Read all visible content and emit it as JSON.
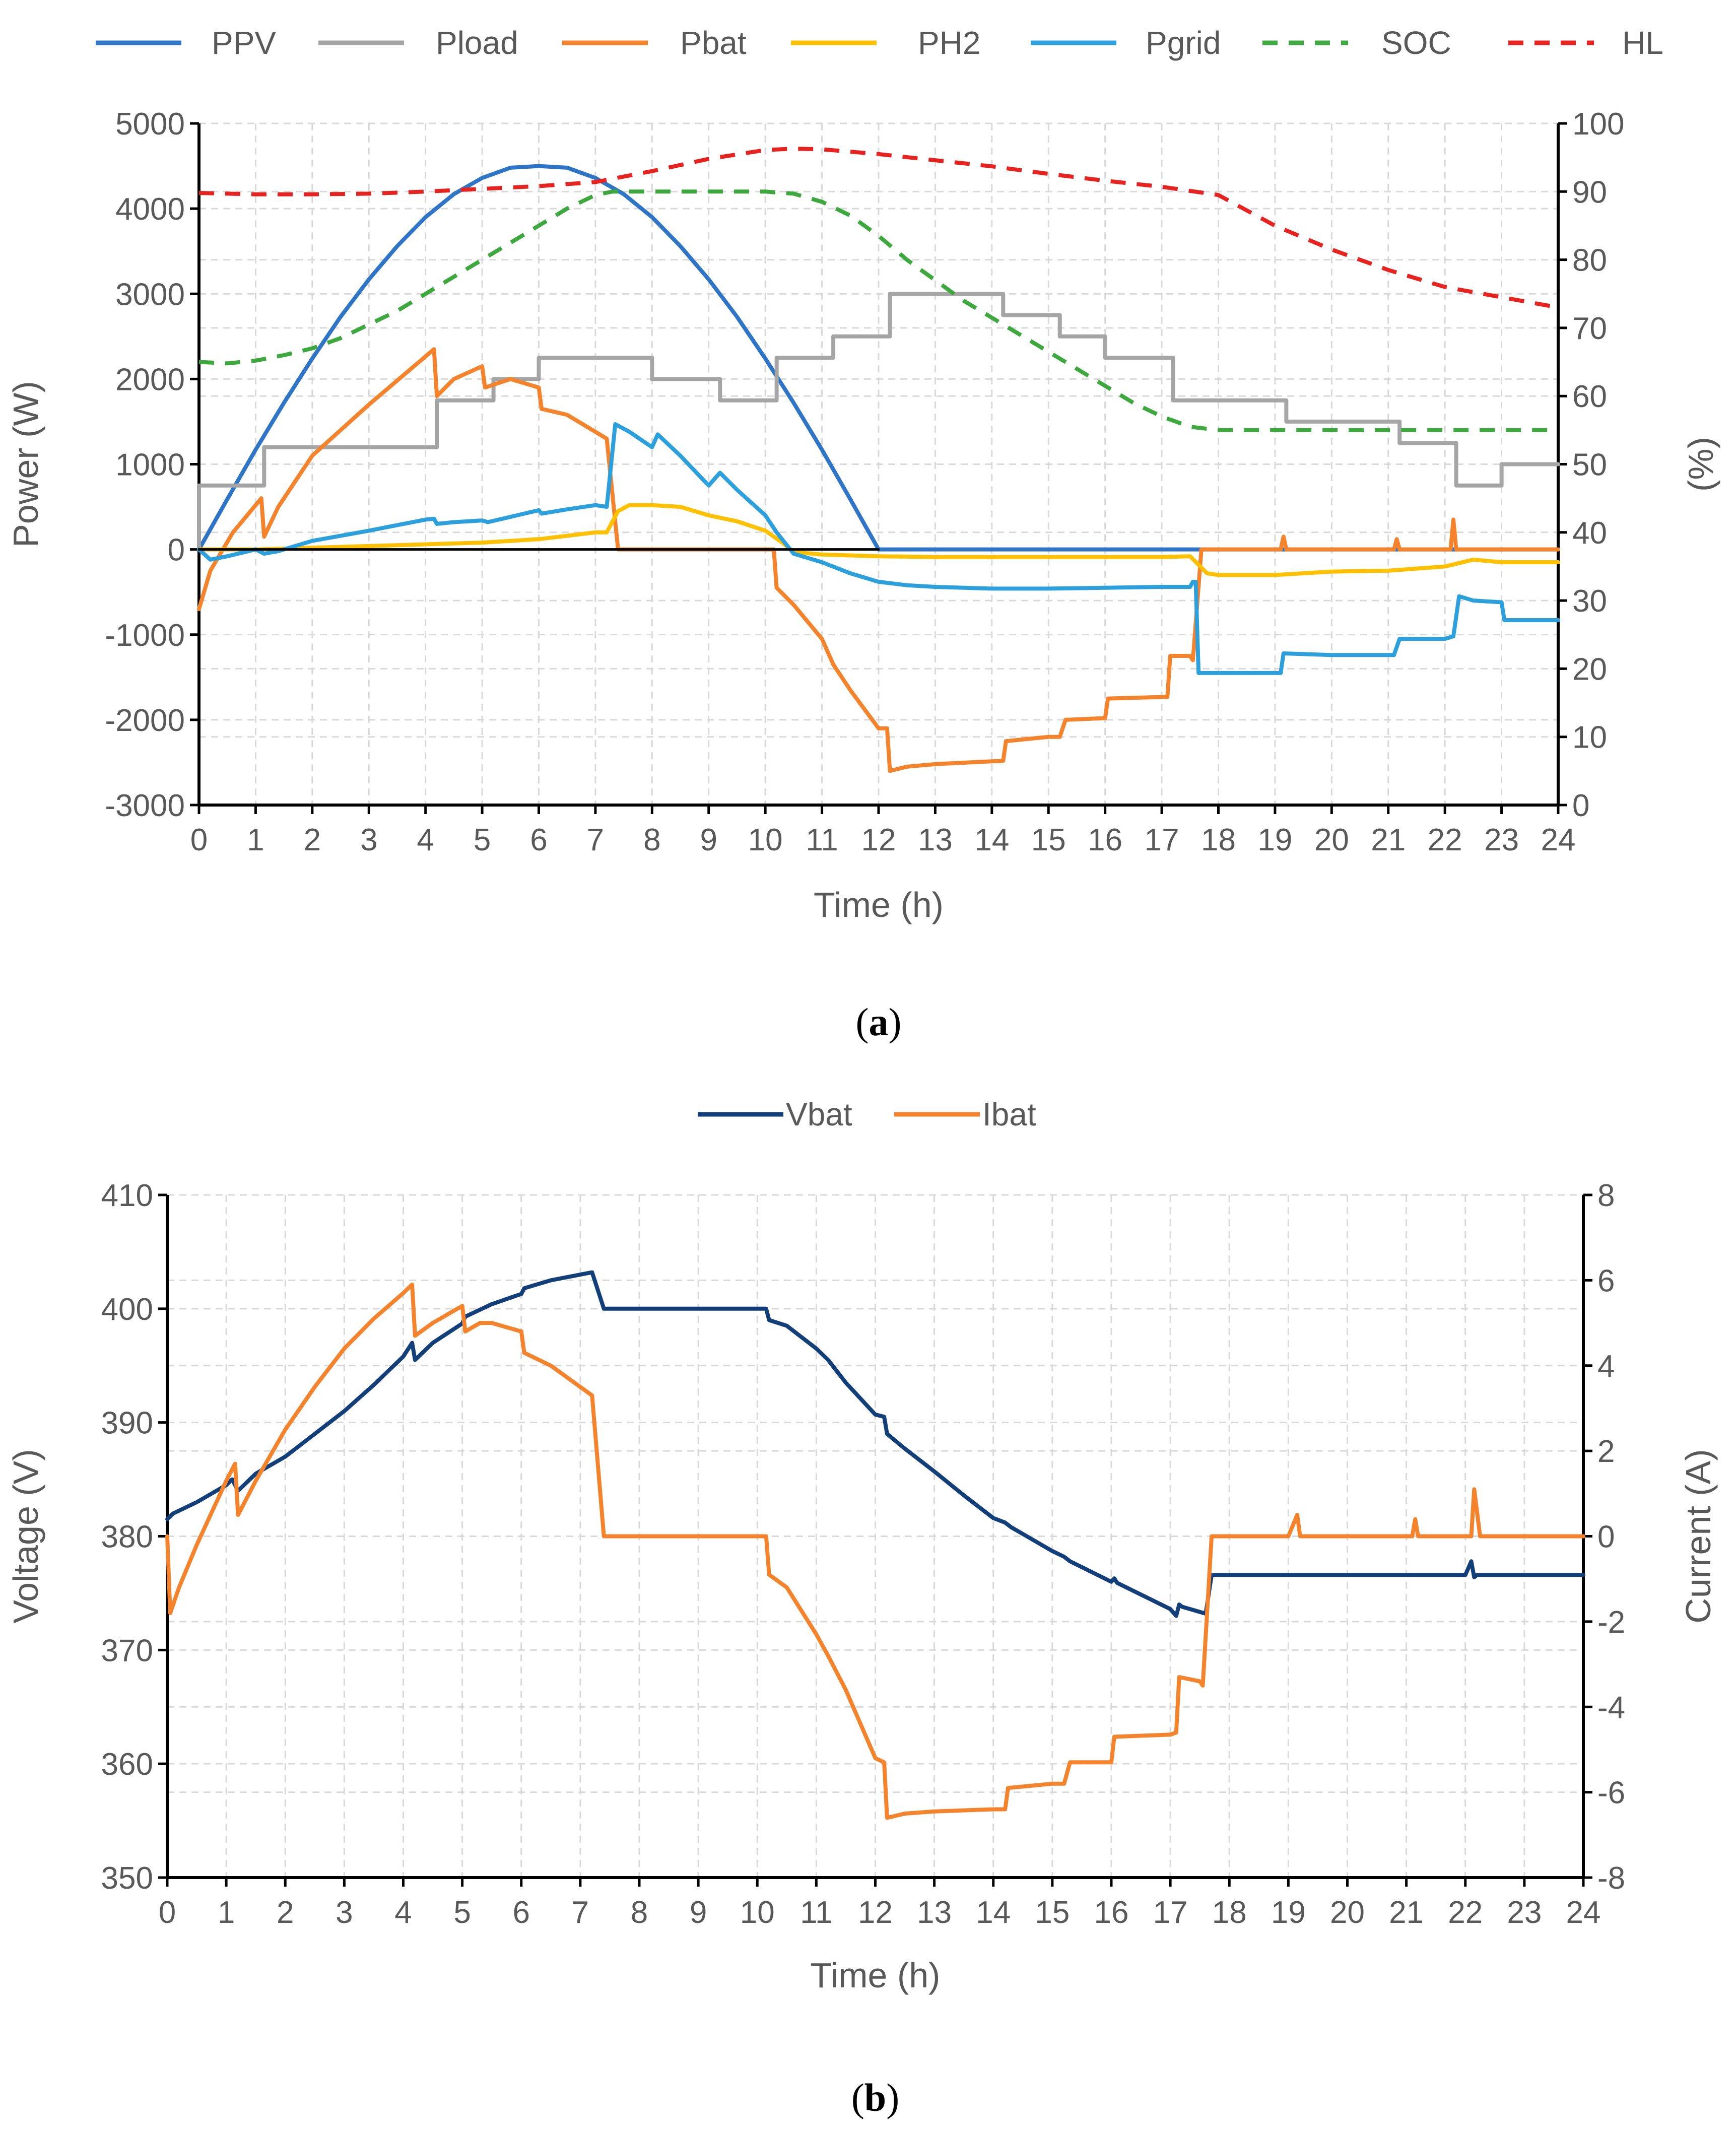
{
  "chart_data": [
    {
      "type": "line",
      "caption_letter": "a",
      "legend": [
        "PPV",
        "Pload",
        "Pbat",
        "PH2",
        "Pgrid",
        "SOC",
        "HL"
      ],
      "xlabel": "Time (h)",
      "ylabel": "Power (W)",
      "y2label": "(%)",
      "xlim": [
        0,
        24
      ],
      "ylim": [
        -3000,
        5000
      ],
      "y2lim": [
        0,
        100
      ],
      "x_ticks": [
        "0",
        "1",
        "2",
        "3",
        "4",
        "5",
        "6",
        "7",
        "8",
        "9",
        "10",
        "11",
        "12",
        "13",
        "14",
        "15",
        "16",
        "17",
        "18",
        "19",
        "20",
        "21",
        "22",
        "23",
        "24"
      ],
      "y_ticks": [
        "5000",
        "4000",
        "3000",
        "2000",
        "1000",
        "0",
        "-1000",
        "-2000",
        "-3000"
      ],
      "y2_ticks": [
        "100",
        "90",
        "80",
        "70",
        "60",
        "50",
        "40",
        "30",
        "20",
        "10",
        "0"
      ],
      "grid": true,
      "series": [
        {
          "name": "PPV",
          "axis": "left",
          "color": "#2E75C8",
          "dash": "solid",
          "x": [
            0,
            0.5,
            1,
            1.5,
            2,
            2.5,
            3,
            3.5,
            4,
            4.5,
            5,
            5.5,
            6,
            6.5,
            7,
            7.5,
            8,
            8.5,
            9,
            9.5,
            10,
            10.5,
            11,
            11.5,
            12,
            13,
            14,
            15,
            16,
            17,
            18,
            19,
            20,
            21,
            22,
            23,
            24
          ],
          "y": [
            0,
            590,
            1170,
            1720,
            2240,
            2730,
            3170,
            3560,
            3900,
            4170,
            4360,
            4480,
            4500,
            4480,
            4360,
            4170,
            3900,
            3560,
            3170,
            2730,
            2240,
            1720,
            1170,
            590,
            0,
            0,
            0,
            0,
            0,
            0,
            0,
            0,
            0,
            0,
            0,
            0,
            0
          ]
        },
        {
          "name": "Pload",
          "axis": "left",
          "color": "#A5A5A5",
          "dash": "solid",
          "x": [
            0,
            0,
            1.15,
            1.15,
            4.2,
            4.2,
            5.2,
            5.2,
            6,
            6,
            8,
            8,
            9.2,
            9.2,
            10.2,
            10.2,
            11.2,
            11.2,
            12.2,
            12.2,
            14.2,
            14.2,
            15.2,
            15.2,
            16,
            16,
            17.2,
            17.2,
            19.2,
            19.2,
            21.2,
            21.2,
            22.2,
            22.2,
            23,
            23,
            24
          ],
          "y": [
            0,
            750,
            750,
            1200,
            1200,
            1750,
            1750,
            2000,
            2000,
            2250,
            2250,
            2000,
            2000,
            1750,
            1750,
            2250,
            2250,
            2500,
            2500,
            3000,
            3000,
            2750,
            2750,
            2500,
            2500,
            2250,
            2250,
            1750,
            1750,
            1500,
            1500,
            1250,
            1250,
            750,
            750,
            1000,
            1000
          ]
        },
        {
          "name": "Pbat",
          "axis": "left",
          "color": "#F4832C",
          "dash": "solid",
          "x": [
            0,
            0.2,
            0.6,
            1.1,
            1.15,
            1.4,
            2,
            3,
            4.15,
            4.2,
            4.5,
            5,
            5.05,
            5.5,
            6,
            6.05,
            6.5,
            7.2,
            7.4,
            8,
            9,
            10,
            10.15,
            10.2,
            10.5,
            11,
            11.2,
            11.5,
            12,
            12.15,
            12.2,
            12.5,
            13,
            14.2,
            14.25,
            15,
            15.2,
            15.3,
            16,
            16.05,
            17.1,
            17.15,
            17.5,
            17.55,
            17.7,
            18,
            19.1,
            19.15,
            19.2,
            21.1,
            21.15,
            21.2,
            22.1,
            22.15,
            22.2,
            22.3,
            23,
            24
          ],
          "y": [
            -700,
            -250,
            200,
            600,
            150,
            500,
            1100,
            1700,
            2350,
            1800,
            2000,
            2150,
            1900,
            2000,
            1900,
            1650,
            1580,
            1300,
            0,
            0,
            0,
            0,
            0,
            -450,
            -650,
            -1050,
            -1350,
            -1650,
            -2100,
            -2100,
            -2600,
            -2550,
            -2520,
            -2480,
            -2250,
            -2200,
            -2200,
            -2000,
            -1980,
            -1750,
            -1730,
            -1250,
            -1250,
            -1300,
            0,
            0,
            0,
            150,
            0,
            0,
            120,
            0,
            0,
            350,
            0,
            0,
            0,
            0
          ]
        },
        {
          "name": "PH2",
          "axis": "left",
          "color": "#FFC000",
          "dash": "solid",
          "x": [
            0,
            1,
            2,
            3,
            4,
            5,
            6,
            7,
            7.2,
            7.4,
            7.6,
            8,
            8.5,
            9,
            9.5,
            10,
            10.3,
            10.5,
            11,
            12,
            13,
            14,
            15,
            16,
            17,
            17.5,
            17.8,
            18,
            19,
            20,
            21,
            22,
            22.5,
            23,
            24
          ],
          "y": [
            0,
            0,
            20,
            40,
            60,
            80,
            120,
            200,
            200,
            450,
            520,
            520,
            500,
            400,
            330,
            220,
            80,
            -30,
            -60,
            -80,
            -90,
            -90,
            -90,
            -90,
            -90,
            -80,
            -280,
            -300,
            -300,
            -260,
            -250,
            -200,
            -120,
            -150,
            -150
          ]
        },
        {
          "name": "Pgrid",
          "axis": "left",
          "color": "#2CA0DC",
          "dash": "solid",
          "x": [
            0,
            0.2,
            0.5,
            1,
            1.15,
            1.4,
            2,
            3,
            4,
            4.15,
            4.2,
            4.5,
            5,
            5.1,
            6,
            6.05,
            6.5,
            7,
            7.2,
            7.35,
            7.6,
            8,
            8.1,
            8.5,
            9,
            9.2,
            9.5,
            10,
            10.2,
            10.5,
            11,
            11.5,
            12,
            12.5,
            13,
            14,
            15,
            16,
            17,
            17.5,
            17.55,
            17.6,
            17.65,
            18,
            19.1,
            19.15,
            20,
            21.1,
            21.2,
            22,
            22.15,
            22.25,
            22.5,
            23,
            23.05,
            24
          ],
          "y": [
            0,
            -120,
            -80,
            0,
            -50,
            -20,
            100,
            220,
            350,
            360,
            300,
            320,
            340,
            320,
            460,
            420,
            470,
            520,
            500,
            1470,
            1380,
            1200,
            1350,
            1100,
            750,
            900,
            700,
            400,
            200,
            -50,
            -150,
            -280,
            -380,
            -420,
            -440,
            -460,
            -460,
            -450,
            -440,
            -440,
            -380,
            -380,
            -1450,
            -1450,
            -1450,
            -1220,
            -1240,
            -1240,
            -1050,
            -1050,
            -1020,
            -550,
            -600,
            -620,
            -830,
            -830
          ]
        },
        {
          "name": "SOC",
          "axis": "right",
          "color": "#3DA83D",
          "dash": "dashed",
          "x": [
            0,
            0.5,
            1,
            1.5,
            2,
            2.5,
            3,
            3.5,
            4,
            4.5,
            5,
            5.5,
            6,
            6.5,
            7,
            7.3,
            8,
            9,
            10,
            10.5,
            11,
            11.5,
            12,
            12.5,
            13,
            13.5,
            14,
            14.5,
            15,
            15.5,
            16,
            16.5,
            17,
            17.5,
            18,
            19,
            20,
            21,
            22,
            23,
            24
          ],
          "y": [
            65,
            64.8,
            65.2,
            66,
            67,
            68.5,
            70.5,
            72.5,
            75,
            77.5,
            80,
            82.5,
            85,
            87.5,
            89.5,
            90,
            90,
            90,
            90,
            89.7,
            88.5,
            86.5,
            83.5,
            80,
            77,
            74,
            71.5,
            69,
            66.5,
            64,
            61.5,
            59,
            57,
            55.5,
            55,
            55,
            55,
            55,
            55,
            55,
            55
          ]
        },
        {
          "name": "HL",
          "axis": "right",
          "color": "#E8231F",
          "dash": "dashed",
          "x": [
            0,
            1,
            2,
            3,
            4,
            5,
            6,
            7,
            8,
            9,
            10,
            10.5,
            11,
            12,
            13,
            14,
            15,
            16,
            17,
            18,
            19,
            20,
            21,
            22,
            23,
            24
          ],
          "y": [
            89.8,
            89.6,
            89.6,
            89.7,
            90,
            90.4,
            90.8,
            91.4,
            93,
            94.8,
            96.1,
            96.3,
            96.2,
            95.5,
            94.6,
            93.7,
            92.6,
            91.6,
            90.7,
            89.5,
            85,
            81.5,
            78.5,
            76,
            74.5,
            73
          ]
        },
        {
          "name": "zero-line",
          "axis": "left",
          "color": "#000000",
          "dash": "solid",
          "x": [
            0,
            12
          ],
          "y": [
            0,
            0
          ]
        }
      ]
    },
    {
      "type": "line",
      "caption_letter": "b",
      "legend": [
        "Vbat",
        "Ibat"
      ],
      "xlabel": "Time (h)",
      "ylabel": "Voltage (V)",
      "y2label": "Current (A)",
      "xlim": [
        0,
        24
      ],
      "ylim": [
        350,
        410
      ],
      "y2lim": [
        -8,
        8
      ],
      "x_ticks": [
        "0",
        "1",
        "2",
        "3",
        "4",
        "5",
        "6",
        "7",
        "8",
        "9",
        "10",
        "11",
        "12",
        "13",
        "14",
        "15",
        "16",
        "17",
        "18",
        "19",
        "20",
        "21",
        "22",
        "23",
        "24"
      ],
      "y_ticks": [
        "410",
        "400",
        "390",
        "380",
        "370",
        "360",
        "350"
      ],
      "y2_ticks": [
        "8",
        "6",
        "4",
        "2",
        "0",
        "-2",
        "-4",
        "-6",
        "-8"
      ],
      "grid": true,
      "series": [
        {
          "name": "Vbat",
          "axis": "left",
          "color": "#123F7A",
          "dash": "solid",
          "x": [
            0,
            0.1,
            0.5,
            1,
            1.1,
            1.2,
            1.5,
            2,
            2.5,
            3,
            3.5,
            4,
            4.15,
            4.2,
            4.5,
            5,
            5.05,
            5.5,
            6,
            6.05,
            6.5,
            7,
            7.2,
            7.4,
            8,
            9,
            10,
            10.15,
            10.2,
            10.5,
            11,
            11.2,
            11.5,
            12,
            12.15,
            12.2,
            12.5,
            13,
            13.5,
            14,
            14.2,
            14.3,
            15,
            15.2,
            15.3,
            16,
            16.05,
            16.1,
            17,
            17.1,
            17.15,
            17.2,
            17.6,
            17.7,
            18,
            19,
            20,
            21,
            22,
            22.1,
            22.15,
            22.2,
            23,
            24
          ],
          "y": [
            381.5,
            382,
            383,
            384.5,
            385,
            384,
            385.5,
            387,
            389,
            391,
            393.3,
            395.8,
            397,
            395.5,
            397,
            398.7,
            399.3,
            400.4,
            401.3,
            401.8,
            402.5,
            403,
            403.2,
            400,
            400,
            400,
            400,
            400,
            399,
            398.5,
            396.5,
            395.5,
            393.5,
            390.7,
            390.5,
            389,
            387.7,
            385.7,
            383.6,
            381.6,
            381.2,
            380.8,
            378.7,
            378.2,
            377.8,
            376,
            376.3,
            375.9,
            373.6,
            373,
            374,
            373.8,
            373.2,
            376.6,
            376.6,
            376.6,
            376.6,
            376.6,
            376.6,
            377.8,
            376.4,
            376.6,
            376.6,
            376.6
          ]
        },
        {
          "name": "Ibat",
          "axis": "right",
          "color": "#F4832C",
          "dash": "solid",
          "x": [
            0,
            0.05,
            0.2,
            0.5,
            1,
            1.15,
            1.2,
            1.5,
            2,
            2.5,
            3,
            3.5,
            4,
            4.15,
            4.2,
            4.5,
            5,
            5.05,
            5.3,
            5.5,
            6,
            6.05,
            6.5,
            7,
            7.2,
            7.4,
            8,
            9,
            10,
            10.15,
            10.2,
            10.5,
            11,
            11.2,
            11.5,
            12,
            12.15,
            12.2,
            12.5,
            13,
            14,
            14.2,
            14.25,
            15,
            15.2,
            15.3,
            16,
            16.05,
            17,
            17.1,
            17.15,
            17.5,
            17.55,
            17.7,
            18,
            19,
            19.15,
            19.2,
            21,
            21.1,
            21.15,
            21.2,
            22,
            22.1,
            22.15,
            22.25,
            22.5,
            23,
            24
          ],
          "y": [
            0,
            -1.8,
            -1.2,
            -0.2,
            1.3,
            1.7,
            0.5,
            1.3,
            2.5,
            3.5,
            4.4,
            5.1,
            5.7,
            5.9,
            4.7,
            5,
            5.4,
            4.8,
            5,
            5,
            4.8,
            4.3,
            4,
            3.5,
            3.3,
            0,
            0,
            0,
            0,
            0,
            -0.9,
            -1.2,
            -2.3,
            -2.8,
            -3.6,
            -5.2,
            -5.3,
            -6.6,
            -6.5,
            -6.45,
            -6.4,
            -6.4,
            -5.9,
            -5.8,
            -5.8,
            -5.3,
            -5.3,
            -4.7,
            -4.65,
            -4.6,
            -3.3,
            -3.4,
            -3.5,
            0,
            0,
            0,
            0.5,
            0,
            0,
            0,
            0.4,
            0,
            0,
            0,
            1.1,
            0,
            0,
            0,
            0
          ]
        }
      ]
    }
  ]
}
